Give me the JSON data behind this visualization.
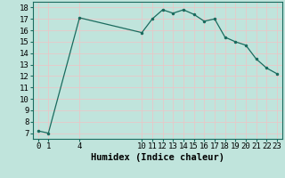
{
  "x": [
    0,
    1,
    4,
    10,
    11,
    12,
    13,
    14,
    15,
    16,
    17,
    18,
    19,
    20,
    21,
    22,
    23
  ],
  "y": [
    7.2,
    7.0,
    17.1,
    15.8,
    17.0,
    17.8,
    17.5,
    17.8,
    17.4,
    16.8,
    17.0,
    15.4,
    15.0,
    14.7,
    13.5,
    12.7,
    12.2
  ],
  "line_color": "#1a6b5e",
  "bg_color": "#c0e4dc",
  "grid_color": "#e8c8c8",
  "xlabel": "Humidex (Indice chaleur)",
  "ylim": [
    6.5,
    18.5
  ],
  "xlim": [
    -0.5,
    23.5
  ],
  "yticks": [
    7,
    8,
    9,
    10,
    11,
    12,
    13,
    14,
    15,
    16,
    17,
    18
  ],
  "xticks": [
    0,
    1,
    4,
    10,
    11,
    12,
    13,
    14,
    15,
    16,
    17,
    18,
    19,
    20,
    21,
    22,
    23
  ],
  "label_fontsize": 7.5,
  "tick_fontsize": 6.5
}
